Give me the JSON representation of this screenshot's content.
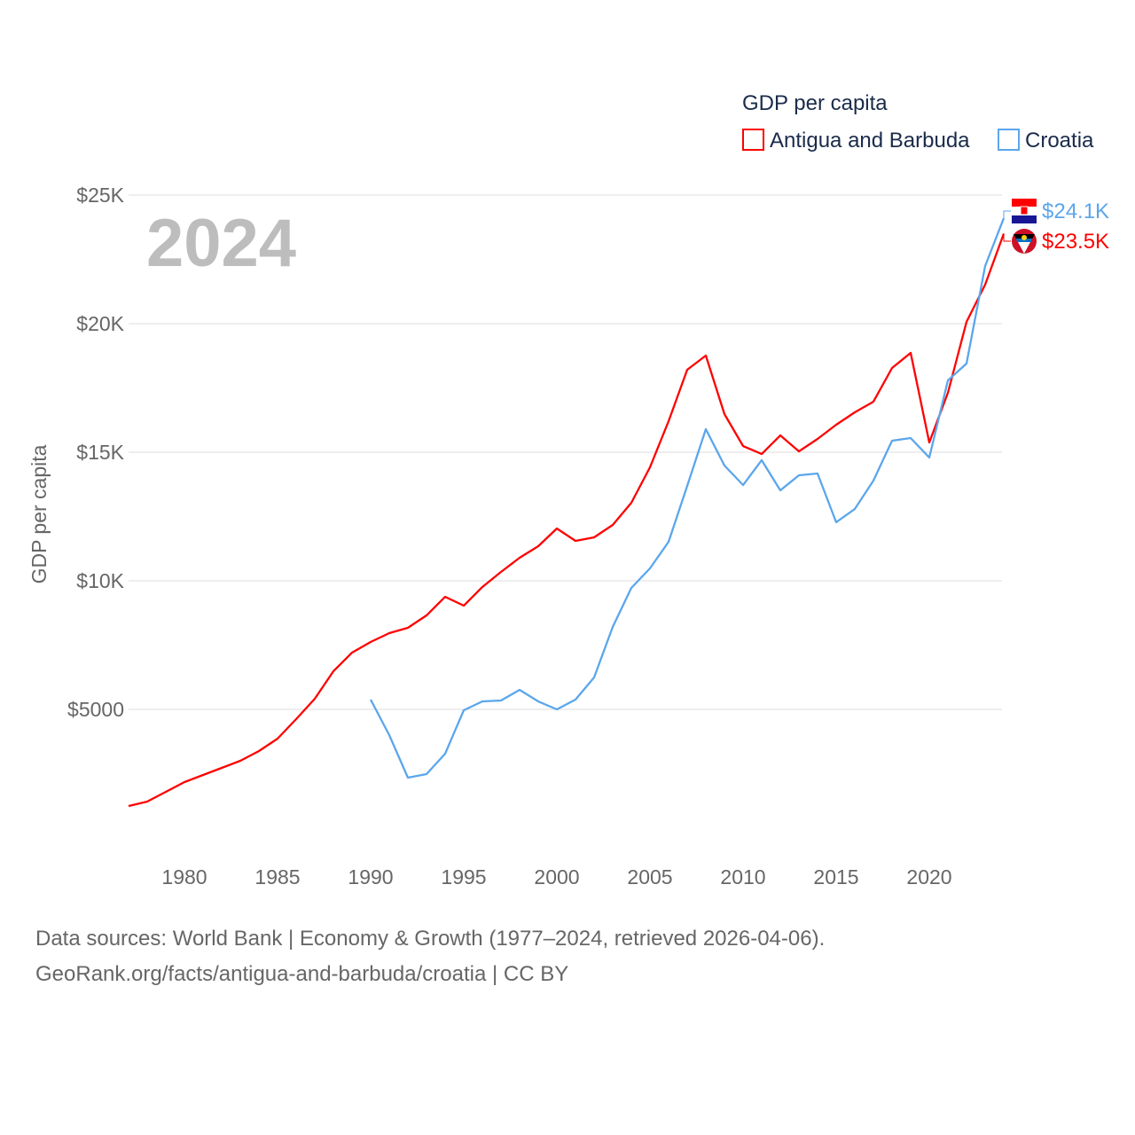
{
  "chart_data": {
    "type": "line",
    "title": "GDP per capita",
    "year_label": "2024",
    "ylabel": "GDP per capita",
    "xlabel": "",
    "xlim": [
      1977,
      2024
    ],
    "ylim": [
      0,
      27500
    ],
    "x_ticks": [
      1980,
      1985,
      1990,
      1995,
      2000,
      2005,
      2010,
      2015,
      2020
    ],
    "y_ticks": [
      {
        "value": 5000,
        "label": "$5000"
      },
      {
        "value": 10000,
        "label": "$10K"
      },
      {
        "value": 15000,
        "label": "$15K"
      },
      {
        "value": 20000,
        "label": "$20K"
      },
      {
        "value": 25000,
        "label": "$25K"
      }
    ],
    "grid": true,
    "legend_position": "top-right",
    "series": [
      {
        "name": "Antigua and Barbuda",
        "color": "#ff0000",
        "end_label": "$23.5K",
        "x": [
          1977,
          1978,
          1979,
          1980,
          1981,
          1982,
          1983,
          1984,
          1985,
          1986,
          1987,
          1988,
          1989,
          1990,
          1991,
          1992,
          1993,
          1994,
          1995,
          1996,
          1997,
          1998,
          1999,
          2000,
          2001,
          2002,
          2003,
          2004,
          2005,
          2006,
          2007,
          2008,
          2009,
          2010,
          2011,
          2012,
          2013,
          2014,
          2015,
          2016,
          2017,
          2018,
          2019,
          2020,
          2021,
          2022,
          2023,
          2024
        ],
        "values": [
          1241,
          1414,
          1793,
          2172,
          2448,
          2724,
          3000,
          3379,
          3862,
          4621,
          5414,
          6483,
          7207,
          7621,
          7966,
          8172,
          8655,
          9379,
          9034,
          9759,
          10345,
          10897,
          11345,
          12034,
          11552,
          11690,
          12172,
          13034,
          14414,
          16207,
          18207,
          18759,
          16483,
          15241,
          14931,
          15655,
          15034,
          15517,
          16069,
          16552,
          16966,
          18276,
          18862,
          15379,
          17310,
          20069,
          21517,
          23500
        ]
      },
      {
        "name": "Croatia",
        "color": "#5ba6ec",
        "end_label": "$24.1K",
        "x": [
          1990,
          1991,
          1992,
          1993,
          1994,
          1995,
          1996,
          1997,
          1998,
          1999,
          2000,
          2001,
          2002,
          2003,
          2004,
          2005,
          2006,
          2007,
          2008,
          2009,
          2010,
          2011,
          2012,
          2013,
          2014,
          2015,
          2016,
          2017,
          2018,
          2019,
          2020,
          2021,
          2022,
          2023,
          2024
        ],
        "values": [
          5379,
          4000,
          2345,
          2483,
          3276,
          4966,
          5310,
          5345,
          5759,
          5310,
          5000,
          5379,
          6241,
          8207,
          9724,
          10483,
          11517,
          13690,
          15897,
          14483,
          13724,
          14690,
          13517,
          14103,
          14172,
          12276,
          12793,
          13897,
          15448,
          15552,
          14793,
          17793,
          18448,
          22241,
          24100
        ]
      }
    ]
  },
  "source": {
    "line1": "Data sources: World Bank | Economy & Growth (1977–2024, retrieved 2026-04-06).",
    "line2": "GeoRank.org/facts/antigua-and-barbuda/croatia | CC BY"
  }
}
